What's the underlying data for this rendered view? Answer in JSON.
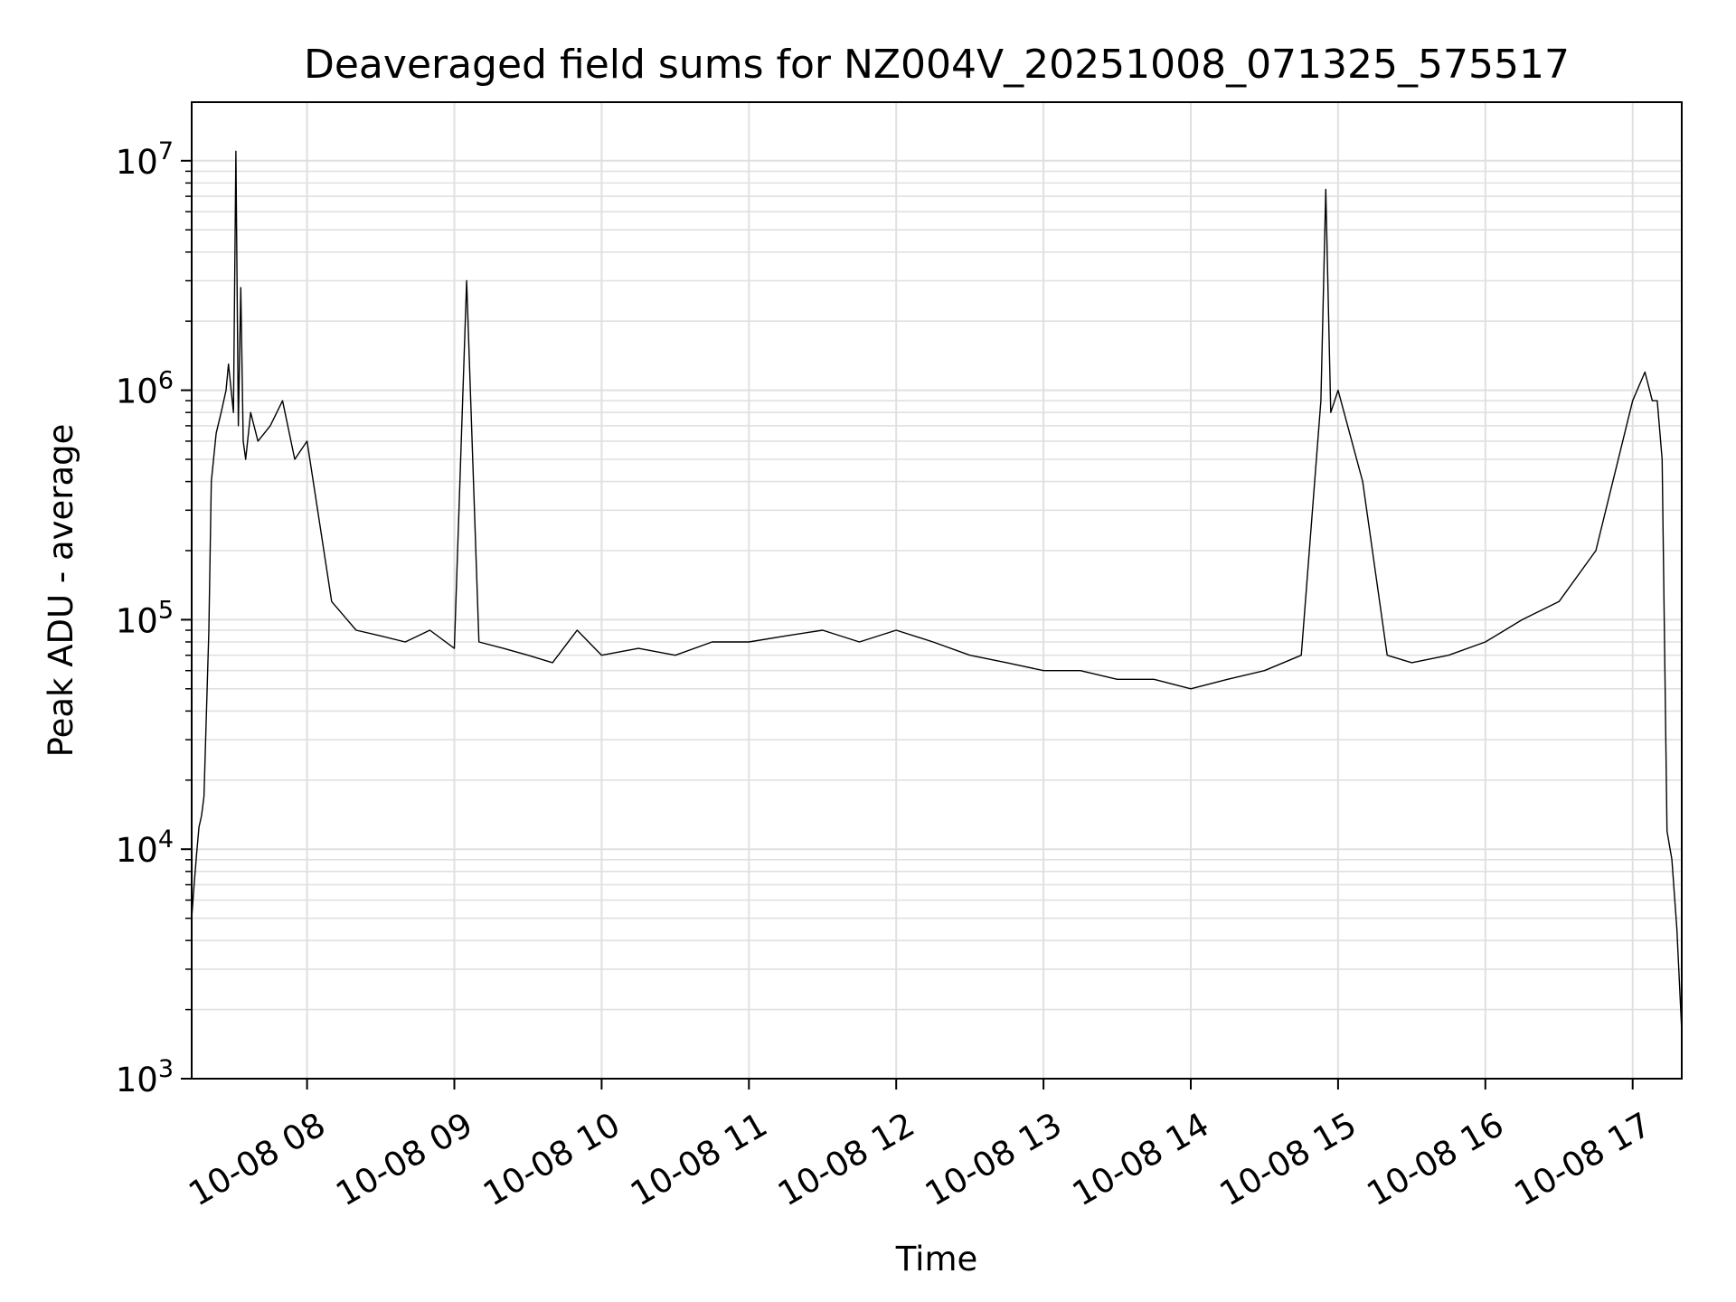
{
  "chart_data": {
    "type": "line",
    "title": "Deaveraged field sums for NZ004V_20251008_071325_575517",
    "xlabel": "Time",
    "ylabel": "Peak ADU - average",
    "yscale": "log",
    "ylim": [
      1000,
      18000000
    ],
    "xlim": [
      "2025-10-08 07:13",
      "2025-10-08 17:20"
    ],
    "grid": true,
    "line_color": "#000000",
    "grid_color": "#e0e0e0",
    "x_tick_labels": [
      "10-08 08",
      "10-08 09",
      "10-08 10",
      "10-08 11",
      "10-08 12",
      "10-08 13",
      "10-08 14",
      "10-08 15",
      "10-08 16",
      "10-08 17"
    ],
    "x_tick_values": [
      "2025-10-08 08:00",
      "2025-10-08 09:00",
      "2025-10-08 10:00",
      "2025-10-08 11:00",
      "2025-10-08 12:00",
      "2025-10-08 13:00",
      "2025-10-08 14:00",
      "2025-10-08 15:00",
      "2025-10-08 16:00",
      "2025-10-08 17:00"
    ],
    "y_ticks": [
      {
        "value": 1000,
        "base": "10",
        "exp": "3"
      },
      {
        "value": 10000,
        "base": "10",
        "exp": "4"
      },
      {
        "value": 100000,
        "base": "10",
        "exp": "5"
      },
      {
        "value": 1000000,
        "base": "10",
        "exp": "6"
      },
      {
        "value": 10000000,
        "base": "10",
        "exp": "7"
      }
    ],
    "series": [
      {
        "x": [
          "2025-10-08 07:13",
          "2025-10-08 07:14",
          "2025-10-08 07:15",
          "2025-10-08 07:16",
          "2025-10-08 07:17",
          "2025-10-08 07:18",
          "2025-10-08 07:20",
          "2025-10-08 07:21",
          "2025-10-08 07:23",
          "2025-10-08 07:25",
          "2025-10-08 07:27",
          "2025-10-08 07:28",
          "2025-10-08 07:30",
          "2025-10-08 07:31",
          "2025-10-08 07:32",
          "2025-10-08 07:33",
          "2025-10-08 07:34",
          "2025-10-08 07:35",
          "2025-10-08 07:37",
          "2025-10-08 07:40",
          "2025-10-08 07:45",
          "2025-10-08 07:50",
          "2025-10-08 07:55",
          "2025-10-08 08:00",
          "2025-10-08 08:10",
          "2025-10-08 08:20",
          "2025-10-08 08:30",
          "2025-10-08 08:40",
          "2025-10-08 08:50",
          "2025-10-08 09:00",
          "2025-10-08 09:05",
          "2025-10-08 09:10",
          "2025-10-08 09:20",
          "2025-10-08 09:30",
          "2025-10-08 09:40",
          "2025-10-08 09:50",
          "2025-10-08 10:00",
          "2025-10-08 10:15",
          "2025-10-08 10:30",
          "2025-10-08 10:45",
          "2025-10-08 11:00",
          "2025-10-08 11:15",
          "2025-10-08 11:30",
          "2025-10-08 11:45",
          "2025-10-08 12:00",
          "2025-10-08 12:15",
          "2025-10-08 12:30",
          "2025-10-08 12:45",
          "2025-10-08 13:00",
          "2025-10-08 13:15",
          "2025-10-08 13:30",
          "2025-10-08 13:45",
          "2025-10-08 14:00",
          "2025-10-08 14:15",
          "2025-10-08 14:30",
          "2025-10-08 14:45",
          "2025-10-08 14:53",
          "2025-10-08 14:55",
          "2025-10-08 14:57",
          "2025-10-08 15:00",
          "2025-10-08 15:10",
          "2025-10-08 15:20",
          "2025-10-08 15:30",
          "2025-10-08 15:45",
          "2025-10-08 16:00",
          "2025-10-08 16:15",
          "2025-10-08 16:30",
          "2025-10-08 16:45",
          "2025-10-08 17:00",
          "2025-10-08 17:05",
          "2025-10-08 17:08",
          "2025-10-08 17:10",
          "2025-10-08 17:12",
          "2025-10-08 17:14",
          "2025-10-08 17:16",
          "2025-10-08 17:18",
          "2025-10-08 17:20"
        ],
        "y": [
          5000,
          7000,
          9500,
          12500,
          14000,
          17000,
          90000,
          400000,
          650000,
          800000,
          1000000,
          1300000,
          800000,
          11000000,
          700000,
          2800000,
          600000,
          500000,
          800000,
          600000,
          700000,
          900000,
          500000,
          600000,
          120000,
          90000,
          85000,
          80000,
          90000,
          75000,
          3000000,
          80000,
          75000,
          70000,
          65000,
          90000,
          70000,
          75000,
          70000,
          80000,
          80000,
          85000,
          90000,
          80000,
          90000,
          80000,
          70000,
          65000,
          60000,
          60000,
          55000,
          55000,
          50000,
          55000,
          60000,
          70000,
          900000,
          7500000,
          800000,
          1000000,
          400000,
          70000,
          65000,
          70000,
          80000,
          100000,
          120000,
          200000,
          900000,
          1200000,
          900000,
          900000,
          500000,
          12000,
          9000,
          4500,
          1600
        ]
      }
    ]
  }
}
